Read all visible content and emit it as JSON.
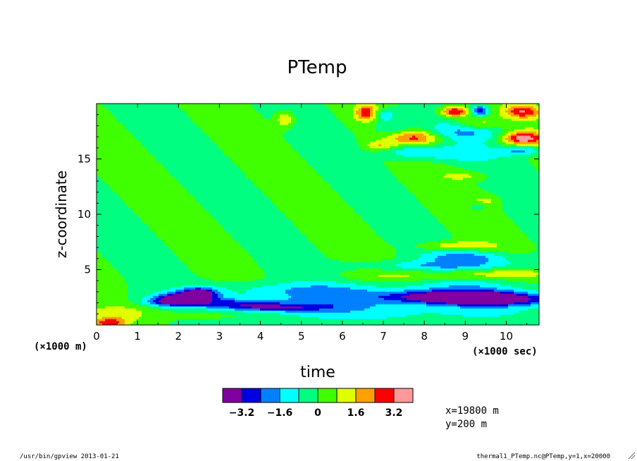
{
  "chart_data": {
    "type": "heatmap",
    "title": "PTemp",
    "xlabel": "time",
    "ylabel": "z-coordinate",
    "x_unit": "(×1000 sec)",
    "y_unit": "(×1000 m)",
    "xlim": [
      0,
      10.8
    ],
    "ylim": [
      0,
      20
    ],
    "x_ticks": [
      0,
      1,
      2,
      3,
      4,
      5,
      6,
      7,
      8,
      9,
      10
    ],
    "y_ticks": [
      5,
      10,
      15
    ],
    "x_tick_labels": [
      "0",
      "1",
      "2",
      "3",
      "4",
      "5",
      "6",
      "7",
      "8",
      "9",
      "10"
    ],
    "y_tick_labels": [
      "5",
      "10",
      "15"
    ],
    "colorbar": {
      "levels": [
        -4.0,
        -3.2,
        -2.4,
        -1.6,
        -0.8,
        0,
        0.8,
        1.6,
        2.4,
        3.2,
        4.0
      ],
      "colors": [
        "#8000a0",
        "#0000e0",
        "#0080ff",
        "#00ffff",
        "#00ff80",
        "#40ff00",
        "#e0ff00",
        "#ffa000",
        "#ff0000",
        "#ff9999"
      ],
      "tick_labels": [
        "−3.2",
        "−1.6",
        "0",
        "1.6",
        "3.2"
      ],
      "tick_values": [
        -3.2,
        -1.6,
        0,
        1.6,
        3.2
      ]
    },
    "grid": false,
    "features": [
      {
        "t": 0.3,
        "z": 0.2,
        "v": 2.6,
        "rt": 0.3,
        "rz": 0.3
      },
      {
        "t": 0.5,
        "z": 1.0,
        "v": 1.4,
        "rt": 0.6,
        "rz": 0.6
      },
      {
        "t": 2.2,
        "z": 2.5,
        "v": -3.6,
        "rt": 0.5,
        "rz": 0.35
      },
      {
        "t": 2.5,
        "z": 3.0,
        "v": -3.0,
        "rt": 0.3,
        "rz": 0.3
      },
      {
        "t": 1.8,
        "z": 2.1,
        "v": -2.6,
        "rt": 0.45,
        "rz": 0.3
      },
      {
        "t": 3.3,
        "z": 2.0,
        "v": -2.2,
        "rt": 0.8,
        "rz": 0.3
      },
      {
        "t": 4.3,
        "z": 1.6,
        "v": -2.4,
        "rt": 0.9,
        "rz": 0.25
      },
      {
        "t": 5.6,
        "z": 2.0,
        "v": -1.2,
        "rt": 1.3,
        "rz": 0.7
      },
      {
        "t": 8.6,
        "z": 2.6,
        "v": -3.0,
        "rt": 1.0,
        "rz": 0.35
      },
      {
        "t": 9.7,
        "z": 2.3,
        "v": -2.9,
        "rt": 1.2,
        "rz": 0.4
      },
      {
        "t": 8.8,
        "z": 2.8,
        "v": -1.5,
        "rt": 2.5,
        "rz": 0.9
      },
      {
        "t": 4.5,
        "z": 3.2,
        "v": -1.0,
        "rt": 1.6,
        "rz": 0.5
      },
      {
        "t": 7.0,
        "z": 0.9,
        "v": -0.7,
        "rt": 3.6,
        "rz": 0.5
      },
      {
        "t": 3.0,
        "z": 1.0,
        "v": 0.6,
        "rt": 1.0,
        "rz": 0.4
      },
      {
        "t": 4.6,
        "z": 18.6,
        "v": 1.8,
        "rt": 0.15,
        "rz": 0.5
      },
      {
        "t": 6.6,
        "z": 19.2,
        "v": 2.8,
        "rt": 0.2,
        "rz": 0.5
      },
      {
        "t": 7.0,
        "z": 19.0,
        "v": -1.8,
        "rt": 0.2,
        "rz": 0.4
      },
      {
        "t": 8.75,
        "z": 19.3,
        "v": 3.6,
        "rt": 0.25,
        "rz": 0.35
      },
      {
        "t": 9.35,
        "z": 19.4,
        "v": -3.4,
        "rt": 0.15,
        "rz": 0.3
      },
      {
        "t": 10.4,
        "z": 19.3,
        "v": 2.8,
        "rt": 0.3,
        "rz": 0.4
      },
      {
        "t": 10.4,
        "z": 16.9,
        "v": 3.6,
        "rt": 0.35,
        "rz": 0.45
      },
      {
        "t": 7.8,
        "z": 17.0,
        "v": 2.6,
        "rt": 0.45,
        "rz": 0.5
      },
      {
        "t": 8.9,
        "z": 17.5,
        "v": -1.5,
        "rt": 0.8,
        "rz": 0.6
      },
      {
        "t": 9.3,
        "z": 18.2,
        "v": 1.6,
        "rt": 0.4,
        "rz": 0.4
      },
      {
        "t": 7.2,
        "z": 17.9,
        "v": -1.2,
        "rt": 0.3,
        "rz": 0.5
      },
      {
        "t": 7.6,
        "z": 15.7,
        "v": -1.4,
        "rt": 0.5,
        "rz": 0.4
      },
      {
        "t": 8.6,
        "z": 15.5,
        "v": -1.3,
        "rt": 0.7,
        "rz": 0.5
      },
      {
        "t": 10.4,
        "z": 15.8,
        "v": -2.0,
        "rt": 0.35,
        "rz": 0.3
      },
      {
        "t": 6.9,
        "z": 16.2,
        "v": 1.5,
        "rt": 0.25,
        "rz": 0.3
      },
      {
        "t": 9.0,
        "z": 13.5,
        "v": 0.9,
        "rt": 0.4,
        "rz": 0.3
      },
      {
        "t": 9.5,
        "z": 11.2,
        "v": 1.0,
        "rt": 0.25,
        "rz": 0.4
      },
      {
        "t": 9.3,
        "z": 10.8,
        "v": -1.0,
        "rt": 0.2,
        "rz": 0.3
      },
      {
        "t": 8.7,
        "z": 7.2,
        "v": 1.5,
        "rt": 0.6,
        "rz": 0.3
      },
      {
        "t": 9.0,
        "z": 6.2,
        "v": -1.4,
        "rt": 0.6,
        "rz": 0.35
      },
      {
        "t": 8.2,
        "z": 5.4,
        "v": -1.2,
        "rt": 1.6,
        "rz": 0.3
      },
      {
        "t": 9.7,
        "z": 5.9,
        "v": -1.0,
        "rt": 1.0,
        "rz": 0.5
      },
      {
        "t": 9.5,
        "z": 4.7,
        "v": 1.1,
        "rt": 1.0,
        "rz": 0.3
      },
      {
        "t": 8.0,
        "z": 4.4,
        "v": 0.8,
        "rt": 1.3,
        "rz": 0.3
      }
    ]
  },
  "colorbar_labels": [
    "−3.2",
    "−1.6",
    "0",
    "1.6",
    "3.2"
  ],
  "info": {
    "x_line": "x=19800 m",
    "y_line": "y=200 m"
  },
  "footer": {
    "left": "/usr/bin/gpview  2013-01-21",
    "right": "thermal1_PTemp.nc@PTemp,y=1,x=20000"
  }
}
